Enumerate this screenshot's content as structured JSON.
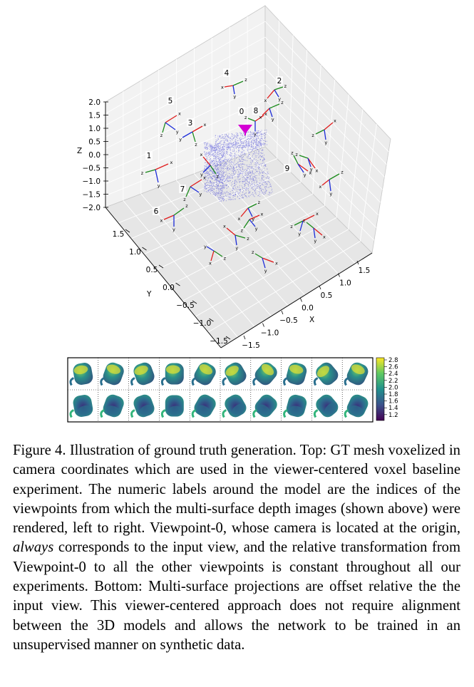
{
  "plot3d": {
    "z_axis_label": "Z",
    "y_axis_label": "Y",
    "x_axis_label": "X",
    "z_ticks": [
      "2.0",
      "1.5",
      "1.0",
      "0.5",
      "0.0",
      "−0.5",
      "−1.0",
      "−1.5",
      "−2.0"
    ],
    "y_ticks": [
      "1.5",
      "1.0",
      "0.5",
      "0.0",
      "−0.5",
      "−1.0",
      "−1.5"
    ],
    "x_ticks": [
      "−1.5",
      "−1.0",
      "−0.5",
      "0.0",
      "0.5",
      "1.0",
      "1.5"
    ],
    "viewpoint_labels": [
      "0",
      "1",
      "2",
      "3",
      "4",
      "5",
      "6",
      "7",
      "8",
      "9"
    ],
    "camera_axis_letters": [
      "x",
      "y",
      "z"
    ],
    "colors": {
      "x_axis": "#e01b1b",
      "y_axis": "#1b2bd8",
      "z_axis": "#1a8a1a",
      "mesh": "#3b3bd6",
      "origin_marker": "#d400d4"
    }
  },
  "depth_strip": {
    "rows": 2,
    "columns": 10,
    "colorbar_ticks": [
      "2.8",
      "2.6",
      "2.4",
      "2.2",
      "2.0",
      "1.8",
      "1.6",
      "1.4",
      "1.2"
    ],
    "colormap": [
      "#440154",
      "#3b528b",
      "#21918c",
      "#5ec962",
      "#fde725"
    ]
  },
  "caption": {
    "label": "Figure 4.",
    "text_before_em": "Illustration of ground truth generation. Top: GT mesh voxelized in camera coordinates which are used in the viewer-centered voxel baseline experiment. The numeric labels around the model are the indices of the viewpoints from which the multi-surface depth images (shown above) were rendered, left to right. Viewpoint-0, whose camera is located at the origin,",
    "em_text": "always",
    "text_after_em": "corresponds to the input view, and the relative transformation from Viewpoint-0 to all the other viewpoints is constant throughout all our experiments. Bottom: Multi-surface projections are offset relative the the input view. This viewer-centered approach does not require alignment between the 3D models and allows the network to be trained in an unsupervised manner on synthetic data."
  }
}
